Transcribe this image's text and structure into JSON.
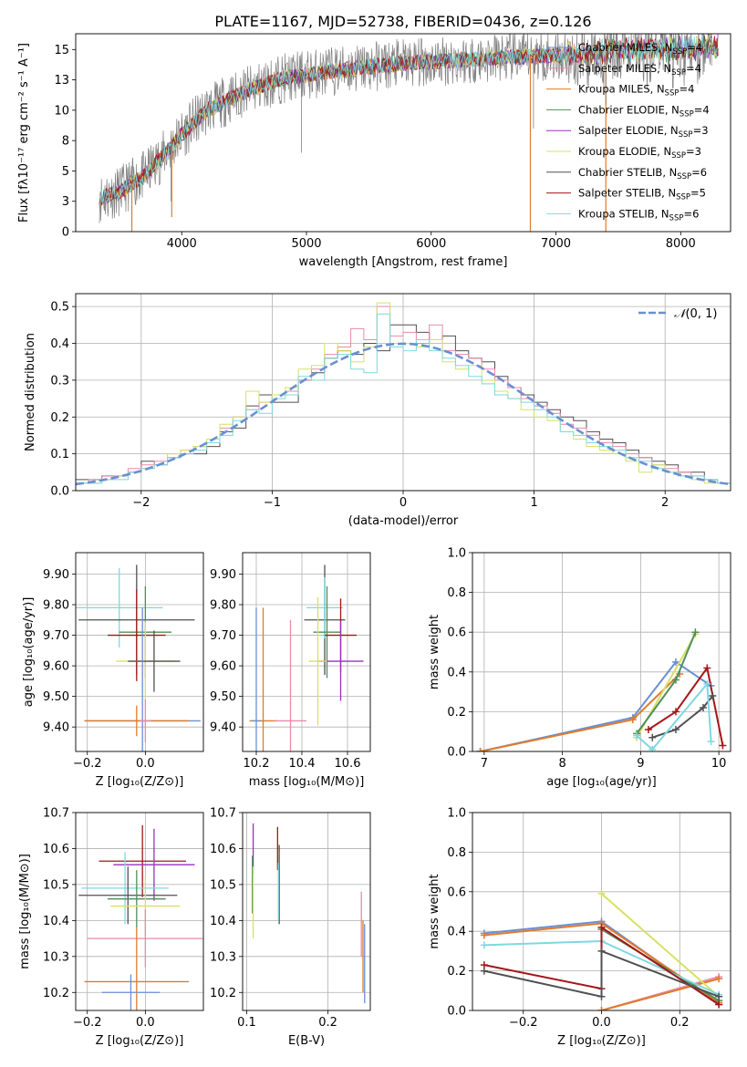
{
  "figure_title": "PLATE=1167, MJD=52738, FIBERID=0436, z=0.126",
  "colors": {
    "Chabrier MILES": "#6a8fd4",
    "Salpeter MILES": "#e98aa6",
    "Kroupa MILES": "#e07b2a",
    "Chabrier ELODIE": "#4f8f5a",
    "Salpeter ELODIE": "#9b2fc0",
    "Kroupa ELODIE": "#d7e065",
    "Chabrier STELIB": "#505050",
    "Salpeter STELIB": "#a5161a",
    "Kroupa STELIB": "#7ed8e0",
    "normal_curve": "#6a8fd4",
    "data_spectrum": "#808080"
  },
  "chart_data": [
    {
      "id": "spectrum",
      "type": "line",
      "title": "PLATE=1167, MJD=52738, FIBERID=0436, z=0.126",
      "xlabel": "wavelength [Angstrom, rest frame]",
      "ylabel": "Flux [fλ10⁻¹⁷ erg cm⁻² s⁻¹ A⁻¹]",
      "xlim": [
        3150,
        8400
      ],
      "ylim": [
        0,
        16.3
      ],
      "xticks": [
        4000,
        5000,
        6000,
        7000,
        8000
      ],
      "yticks": [
        0.0,
        2.5,
        5.0,
        7.5,
        10.0,
        12.5,
        15.0
      ],
      "legend_position": "top-right",
      "legend": [
        "Chabrier MILES, N_SSP=4",
        "Salpeter MILES, N_SSP=4",
        "Kroupa MILES, N_SSP=4",
        "Chabrier ELODIE, N_SSP=4",
        "Salpeter ELODIE, N_SSP=3",
        "Kroupa ELODIE, N_SSP=3",
        "Chabrier STELIB, N_SSP=6",
        "Salpeter STELIB, N_SSP=5",
        "Kroupa STELIB, N_SSP=6"
      ],
      "legend_labels": [
        {
          "pre": "Chabrier MILES, N",
          "sub": "SSP",
          "post": "=4"
        },
        {
          "pre": "Salpeter MILES, N",
          "sub": "SSP",
          "post": "=4"
        },
        {
          "pre": "Kroupa MILES, N",
          "sub": "SSP",
          "post": "=4"
        },
        {
          "pre": "Chabrier ELODIE, N",
          "sub": "SSP",
          "post": "=4"
        },
        {
          "pre": "Salpeter ELODIE, N",
          "sub": "SSP",
          "post": "=3"
        },
        {
          "pre": "Kroupa ELODIE, N",
          "sub": "SSP",
          "post": "=3"
        },
        {
          "pre": "Chabrier STELIB, N",
          "sub": "SSP",
          "post": "=6"
        },
        {
          "pre": "Salpeter STELIB, N",
          "sub": "SSP",
          "post": "=5"
        },
        {
          "pre": "Kroupa STELIB, N",
          "sub": "SSP",
          "post": "=6"
        }
      ],
      "continuum": {
        "x": [
          3350,
          3500,
          3700,
          3900,
          4000,
          4200,
          4500,
          4800,
          5200,
          5600,
          6000,
          6500,
          7000,
          7300,
          7500,
          8000,
          8200
        ],
        "y": [
          2.8,
          3.3,
          4.6,
          6.8,
          8.0,
          10.0,
          11.5,
          12.6,
          13.2,
          13.7,
          14.0,
          14.3,
          14.5,
          14.7,
          14.9,
          15.1,
          15.2
        ]
      }
    },
    {
      "id": "residual_hist",
      "type": "step",
      "xlabel": "(data-model)/error",
      "ylabel": "Normed distribution",
      "xlim": [
        -2.5,
        2.5
      ],
      "ylim": [
        0,
        0.535
      ],
      "xticks": [
        -2,
        -1,
        0,
        1,
        2
      ],
      "yticks": [
        0.0,
        0.1,
        0.2,
        0.3,
        0.4,
        0.5
      ],
      "bin_width": 0.1,
      "bins_from": -2.5,
      "legend": [
        "𝒩(0, 1)"
      ],
      "legend_parts": {
        "script": "𝒩",
        "args": "(0, 1)"
      },
      "legend_position": "top-right",
      "series": [
        {
          "name": "Chabrier STELIB",
          "values": [
            0.03,
            0.03,
            0.04,
            0.04,
            0.05,
            0.08,
            0.07,
            0.09,
            0.1,
            0.1,
            0.12,
            0.16,
            0.17,
            0.23,
            0.26,
            0.24,
            0.24,
            0.3,
            0.32,
            0.36,
            0.38,
            0.37,
            0.4,
            0.38,
            0.45,
            0.45,
            0.43,
            0.41,
            0.42,
            0.38,
            0.36,
            0.35,
            0.31,
            0.28,
            0.26,
            0.24,
            0.22,
            0.2,
            0.19,
            0.16,
            0.14,
            0.13,
            0.11,
            0.09,
            0.08,
            0.07,
            0.05,
            0.05,
            0.03,
            0.02
          ]
        },
        {
          "name": "Salpeter MILES",
          "values": [
            0.02,
            0.03,
            0.04,
            0.04,
            0.06,
            0.07,
            0.08,
            0.1,
            0.11,
            0.12,
            0.13,
            0.17,
            0.2,
            0.22,
            0.24,
            0.26,
            0.27,
            0.3,
            0.33,
            0.37,
            0.39,
            0.44,
            0.41,
            0.5,
            0.42,
            0.43,
            0.4,
            0.45,
            0.38,
            0.37,
            0.36,
            0.33,
            0.3,
            0.28,
            0.25,
            0.23,
            0.21,
            0.18,
            0.17,
            0.15,
            0.13,
            0.12,
            0.1,
            0.09,
            0.07,
            0.06,
            0.05,
            0.04,
            0.03,
            0.02
          ]
        },
        {
          "name": "Kroupa ELODIE",
          "values": [
            0.02,
            0.02,
            0.03,
            0.04,
            0.05,
            0.06,
            0.07,
            0.1,
            0.11,
            0.12,
            0.14,
            0.18,
            0.2,
            0.27,
            0.24,
            0.26,
            0.28,
            0.33,
            0.34,
            0.4,
            0.38,
            0.35,
            0.39,
            0.51,
            0.4,
            0.4,
            0.39,
            0.41,
            0.35,
            0.33,
            0.34,
            0.3,
            0.27,
            0.25,
            0.22,
            0.2,
            0.19,
            0.16,
            0.14,
            0.12,
            0.11,
            0.1,
            0.08,
            0.05,
            0.07,
            0.05,
            0.04,
            0.03,
            0.02,
            0.02
          ]
        },
        {
          "name": "Kroupa STELIB",
          "values": [
            0.02,
            0.02,
            0.03,
            0.03,
            0.05,
            0.06,
            0.07,
            0.09,
            0.1,
            0.11,
            0.13,
            0.15,
            0.19,
            0.22,
            0.21,
            0.25,
            0.26,
            0.31,
            0.3,
            0.36,
            0.37,
            0.33,
            0.32,
            0.48,
            0.39,
            0.38,
            0.41,
            0.38,
            0.36,
            0.34,
            0.31,
            0.29,
            0.26,
            0.25,
            0.24,
            0.22,
            0.2,
            0.16,
            0.15,
            0.13,
            0.12,
            0.11,
            0.09,
            0.08,
            0.06,
            0.05,
            0.04,
            0.04,
            0.03,
            0.02
          ]
        }
      ],
      "normal_curve": {
        "mu": 0,
        "sigma": 1
      }
    },
    {
      "id": "age_vs_Z",
      "type": "errorbar",
      "xlabel": "Z [log₁₀(Z/Z⊙)]",
      "ylabel": "age [log₁₀(age/yr)]",
      "xlim": [
        -0.24,
        0.2
      ],
      "ylim": [
        9.32,
        9.97
      ],
      "xticks": [
        -0.2,
        0.0
      ],
      "yticks": [
        9.4,
        9.5,
        9.6,
        9.7,
        9.8,
        9.9
      ],
      "points": [
        {
          "series": "Kroupa STELIB",
          "x": -0.09,
          "y": 9.79,
          "xerr": 0.15,
          "yerr": 0.13
        },
        {
          "series": "Chabrier STELIB",
          "x": -0.03,
          "y": 9.75,
          "xerr": 0.2,
          "yerr": 0.18
        },
        {
          "series": "Chabrier ELODIE",
          "x": 0.0,
          "y": 9.71,
          "xerr": 0.09,
          "yerr": 0.15
        },
        {
          "series": "Salpeter STELIB",
          "x": -0.03,
          "y": 9.7,
          "xerr": 0.1,
          "yerr": 0.15
        },
        {
          "series": "Kroupa ELODIE",
          "x": 0.0,
          "y": 9.615,
          "xerr": 0.1,
          "yerr": 0.13
        },
        {
          "series": "Chabrier STELIB",
          "x": 0.03,
          "y": 9.615,
          "xerr": 0.09,
          "yerr": 0.1
        },
        {
          "series": "Chabrier MILES",
          "x": -0.01,
          "y": 9.42,
          "xerr": 0.2,
          "yerr": 0.37
        },
        {
          "series": "Kroupa MILES",
          "x": -0.03,
          "y": 9.42,
          "xerr": 0.18,
          "yerr": 0.05
        },
        {
          "series": "Salpeter MILES",
          "x": 0.0,
          "y": 9.42,
          "xerr": 0.02,
          "yerr": 0.07
        }
      ]
    },
    {
      "id": "age_vs_mass",
      "type": "errorbar",
      "xlabel": "mass [log₁₀(M/M⊙)]",
      "ylabel": "",
      "xlim": [
        10.14,
        10.7
      ],
      "ylim": [
        9.32,
        9.97
      ],
      "xticks": [
        10.2,
        10.4,
        10.6
      ],
      "yticks": [
        9.4,
        9.5,
        9.6,
        9.7,
        9.8,
        9.9
      ],
      "points": [
        {
          "series": "Chabrier STELIB",
          "x": 10.5,
          "y": 9.75,
          "xerr": 0.09,
          "yerr": 0.18
        },
        {
          "series": "Kroupa STELIB",
          "x": 10.5,
          "y": 9.79,
          "xerr": 0.08,
          "yerr": 0.1
        },
        {
          "series": "Chabrier ELODIE",
          "x": 10.51,
          "y": 9.71,
          "xerr": 0.06,
          "yerr": 0.15
        },
        {
          "series": "Salpeter STELIB",
          "x": 10.57,
          "y": 9.7,
          "xerr": 0.07,
          "yerr": 0.12
        },
        {
          "series": "Salpeter ELODIE",
          "x": 10.57,
          "y": 9.615,
          "xerr": 0.1,
          "yerr": 0.13
        },
        {
          "series": "Kroupa ELODIE",
          "x": 10.47,
          "y": 9.615,
          "xerr": 0.04,
          "yerr": 0.21
        },
        {
          "series": "Kroupa MILES",
          "x": 10.23,
          "y": 9.42,
          "xerr": 0.06,
          "yerr": 0.37
        },
        {
          "series": "Chabrier MILES",
          "x": 10.2,
          "y": 9.42,
          "xerr": 0.02,
          "yerr": 0.37
        },
        {
          "series": "Salpeter MILES",
          "x": 10.35,
          "y": 9.42,
          "xerr": 0.07,
          "yerr": 0.33
        }
      ]
    },
    {
      "id": "weight_vs_age",
      "type": "line",
      "xlabel": "age [log₁₀(age/yr)]",
      "ylabel": "mass weight",
      "xlim": [
        6.85,
        10.15
      ],
      "ylim": [
        0,
        1
      ],
      "xticks": [
        7,
        8,
        9,
        10
      ],
      "yticks": [
        0.0,
        0.2,
        0.4,
        0.6,
        0.8,
        1.0
      ],
      "series": [
        {
          "name": "Chabrier MILES",
          "x": [
            6.95,
            8.9,
            9.45,
            9.9
          ],
          "y": [
            0.0,
            0.17,
            0.45,
            0.33
          ]
        },
        {
          "name": "Kroupa MILES",
          "x": [
            6.95,
            8.9,
            9.5
          ],
          "y": [
            0.0,
            0.16,
            0.39
          ]
        },
        {
          "name": "Kroupa ELODIE",
          "x": [
            8.95,
            9.7
          ],
          "y": [
            0.07,
            0.59
          ]
        },
        {
          "name": "Chabrier ELODIE",
          "x": [
            8.95,
            9.45,
            9.7
          ],
          "y": [
            0.09,
            0.36,
            0.6
          ]
        },
        {
          "name": "Salpeter STELIB",
          "x": [
            9.1,
            9.45,
            9.85,
            10.05
          ],
          "y": [
            0.11,
            0.2,
            0.42,
            0.03
          ]
        },
        {
          "name": "Chabrier STELIB",
          "x": [
            9.15,
            9.45,
            9.8,
            9.92
          ],
          "y": [
            0.07,
            0.11,
            0.22,
            0.28
          ]
        },
        {
          "name": "Kroupa STELIB",
          "x": [
            8.95,
            9.15,
            9.85,
            9.9
          ],
          "y": [
            0.08,
            0.01,
            0.34,
            0.05
          ]
        }
      ]
    },
    {
      "id": "mass_vs_Z",
      "type": "errorbar",
      "xlabel": "Z [log₁₀(Z/Z⊙)]",
      "ylabel": "mass [log₁₀(M/M⊙)]",
      "xlim": [
        -0.24,
        0.2
      ],
      "ylim": [
        10.15,
        10.7
      ],
      "xticks": [
        -0.2,
        0.0
      ],
      "yticks": [
        10.2,
        10.3,
        10.4,
        10.5,
        10.6,
        10.7
      ],
      "points": [
        {
          "series": "Salpeter STELIB",
          "x": -0.01,
          "y": 10.565,
          "xerr": 0.15,
          "yerr": 0.1
        },
        {
          "series": "Salpeter ELODIE",
          "x": 0.03,
          "y": 10.555,
          "xerr": 0.14,
          "yerr": 0.1
        },
        {
          "series": "Kroupa STELIB",
          "x": -0.07,
          "y": 10.49,
          "xerr": 0.15,
          "yerr": 0.1
        },
        {
          "series": "Chabrier STELIB",
          "x": -0.06,
          "y": 10.47,
          "xerr": 0.17,
          "yerr": 0.08
        },
        {
          "series": "Chabrier ELODIE",
          "x": -0.03,
          "y": 10.46,
          "xerr": 0.1,
          "yerr": 0.08
        },
        {
          "series": "Kroupa ELODIE",
          "x": 0.0,
          "y": 10.44,
          "xerr": 0.12,
          "yerr": 0.08
        },
        {
          "series": "Salpeter MILES",
          "x": 0.0,
          "y": 10.35,
          "xerr": 0.2,
          "yerr": 0.08
        },
        {
          "series": "Kroupa MILES",
          "x": -0.03,
          "y": 10.23,
          "xerr": 0.18,
          "yerr": 0.15
        },
        {
          "series": "Chabrier MILES",
          "x": -0.05,
          "y": 10.2,
          "xerr": 0.1,
          "yerr": 0.05
        }
      ]
    },
    {
      "id": "mass_vs_EBV",
      "type": "errorbar",
      "xlabel": "E(B-V)",
      "ylabel": "",
      "xlim": [
        0.095,
        0.252
      ],
      "ylim": [
        10.15,
        10.7
      ],
      "xticks": [
        0.1,
        0.2
      ],
      "yticks": [
        10.2,
        10.3,
        10.4,
        10.5,
        10.6,
        10.7
      ],
      "points": [
        {
          "series": "Salpeter ELODIE",
          "x": 0.108,
          "y": 10.6,
          "xerr": 0,
          "yerr": 0.07
        },
        {
          "series": "Chabrier ELODIE",
          "x": 0.107,
          "y": 10.5,
          "xerr": 0,
          "yerr": 0.08
        },
        {
          "series": "Kroupa ELODIE",
          "x": 0.108,
          "y": 10.45,
          "xerr": 0,
          "yerr": 0.1
        },
        {
          "series": "Salpeter STELIB",
          "x": 0.138,
          "y": 10.6,
          "xerr": 0,
          "yerr": 0.06
        },
        {
          "series": "Chabrier STELIB",
          "x": 0.14,
          "y": 10.5,
          "xerr": 0,
          "yerr": 0.11
        },
        {
          "series": "Kroupa STELIB",
          "x": 0.139,
          "y": 10.48,
          "xerr": 0,
          "yerr": 0.08
        },
        {
          "series": "Salpeter MILES",
          "x": 0.241,
          "y": 10.39,
          "xerr": 0,
          "yerr": 0.09
        },
        {
          "series": "Kroupa MILES",
          "x": 0.243,
          "y": 10.3,
          "xerr": 0,
          "yerr": 0.1
        },
        {
          "series": "Chabrier MILES",
          "x": 0.245,
          "y": 10.28,
          "xerr": 0,
          "yerr": 0.11
        }
      ]
    },
    {
      "id": "weight_vs_Z",
      "type": "line",
      "xlabel": "Z [log₁₀(Z/Z⊙)]",
      "ylabel": "mass weight",
      "xlim": [
        -0.33,
        0.33
      ],
      "ylim": [
        0,
        1
      ],
      "xticks": [
        -0.2,
        0.0,
        0.2
      ],
      "yticks": [
        0.0,
        0.2,
        0.4,
        0.6,
        0.8,
        1.0
      ],
      "series": [
        {
          "name": "Chabrier MILES",
          "x": [
            -0.3,
            0.0,
            0.3
          ],
          "y": [
            0.39,
            0.45,
            0.03
          ]
        },
        {
          "name": "Kroupa MILES",
          "x": [
            -0.3,
            0.0,
            0.3
          ],
          "y": [
            0.38,
            0.44,
            0.04
          ]
        },
        {
          "name": "Salpeter MILES",
          "x": [
            0.0,
            0.3
          ],
          "y": [
            0.0,
            0.17
          ]
        },
        {
          "name": "Kroupa MILES",
          "x": [
            0.0,
            0.3
          ],
          "y": [
            0.0,
            0.16
          ]
        },
        {
          "name": "Kroupa ELODIE",
          "x": [
            0.0,
            0.3
          ],
          "y": [
            0.59,
            0.07
          ]
        },
        {
          "name": "Chabrier ELODIE",
          "x": [
            0.0,
            0.3
          ],
          "y": [
            0.41,
            0.05
          ]
        },
        {
          "name": "Kroupa STELIB",
          "x": [
            -0.3,
            0.0,
            0.3
          ],
          "y": [
            0.33,
            0.35,
            0.08
          ]
        },
        {
          "name": "Salpeter STELIB",
          "x": [
            -0.3,
            0.0,
            0.0,
            0.3
          ],
          "y": [
            0.23,
            0.11,
            0.42,
            0.03
          ]
        },
        {
          "name": "Chabrier STELIB",
          "x": [
            -0.3,
            0.0,
            0.0,
            0.3
          ],
          "y": [
            0.2,
            0.07,
            0.3,
            0.07
          ]
        }
      ]
    }
  ]
}
